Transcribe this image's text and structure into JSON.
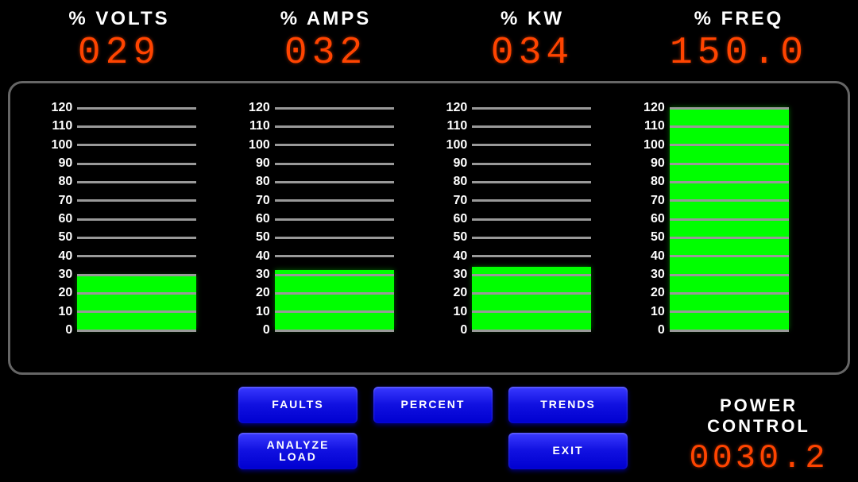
{
  "colors": {
    "background": "#000000",
    "panel_border": "#666666",
    "tick_line": "#999999",
    "tick_label": "#ffffff",
    "title_text": "#ffffff",
    "digital_text": "#ff4400",
    "bar_fill": "#00ff00",
    "button_bg_top": "#3a3aff",
    "button_bg_bottom": "#0000d0",
    "button_text": "#ffffff"
  },
  "typography": {
    "title_fontsize": 24,
    "digital_fontsize": 48,
    "tick_fontsize": 16,
    "button_fontsize": 14,
    "power_title_fontsize": 22,
    "power_readout_fontsize": 42
  },
  "scale": {
    "min": 0,
    "max": 120,
    "ticks": [
      120,
      110,
      100,
      90,
      80,
      70,
      60,
      50,
      40,
      30,
      20,
      10,
      0
    ]
  },
  "gauges": [
    {
      "title": "% VOLTS",
      "readout": "029",
      "value": 29
    },
    {
      "title": "% AMPS",
      "readout": "032",
      "value": 32
    },
    {
      "title": "% KW",
      "readout": "034",
      "value": 34
    },
    {
      "title": "% FREQ",
      "readout": "150.0",
      "value": 120
    }
  ],
  "buttons": {
    "faults": "FAULTS",
    "percent": "PERCENT",
    "trends": "TRENDS",
    "analyze": "ANALYZE\nLOAD",
    "exit": "EXIT"
  },
  "power_control": {
    "title_line1": "POWER",
    "title_line2": "CONTROL",
    "readout": "0030.2"
  }
}
